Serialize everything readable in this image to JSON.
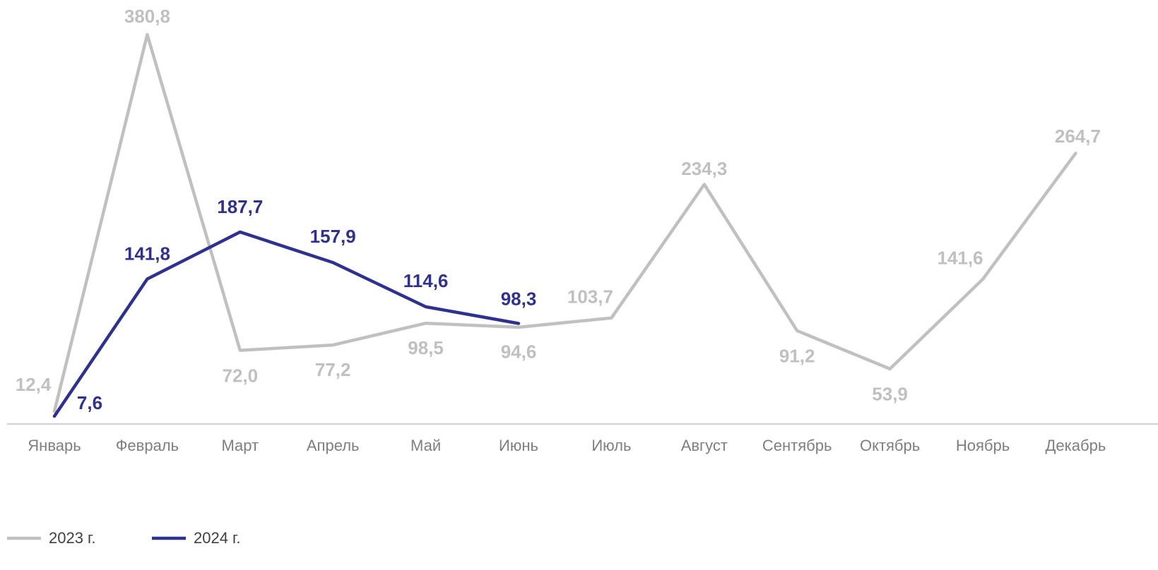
{
  "chart_data": {
    "type": "line",
    "categories": [
      "Январь",
      "Февраль",
      "Март",
      "Апрель",
      "Май",
      "Июнь",
      "Июль",
      "Август",
      "Сентябрь",
      "Октябрь",
      "Ноябрь",
      "Декабрь"
    ],
    "series": [
      {
        "name": "2023 г.",
        "color": "#c0c0c0",
        "values": [
          12.4,
          380.8,
          72.0,
          77.2,
          98.5,
          94.6,
          103.7,
          234.3,
          91.2,
          53.9,
          141.6,
          264.7
        ],
        "value_labels": [
          "12,4",
          "380,8",
          "72,0",
          "77,2",
          "98,5",
          "94,6",
          "103,7",
          "234,3",
          "91,2",
          "53,9",
          "141,6",
          "264,7"
        ]
      },
      {
        "name": "2024 г.",
        "color": "#2e3192",
        "values": [
          7.6,
          141.8,
          187.7,
          157.9,
          114.6,
          98.3,
          null,
          null,
          null,
          null,
          null,
          null
        ],
        "value_labels": [
          "7,6",
          "141,8",
          "187,7",
          "157,9",
          "114,6",
          "98,3",
          null,
          null,
          null,
          null,
          null,
          null
        ]
      }
    ],
    "legend": "bottom-left"
  }
}
